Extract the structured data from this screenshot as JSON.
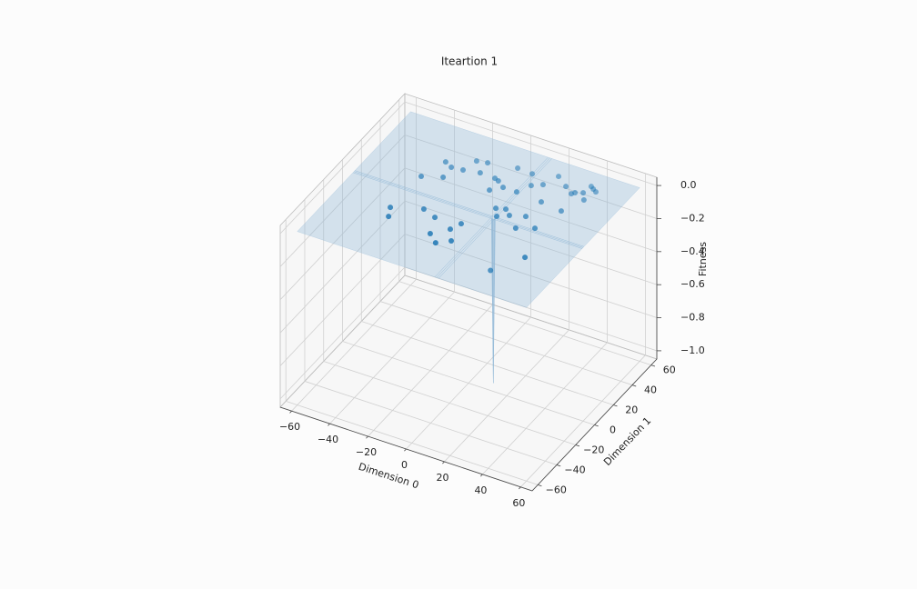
{
  "chart_data": {
    "type": "scatter3d",
    "title": "Iteartion 1",
    "xlabel": "Dimension 0",
    "ylabel": "Dimension 1",
    "zlabel": "Fitness",
    "xlim": [
      -66,
      66
    ],
    "ylim": [
      -66,
      66
    ],
    "zlim": [
      -1.05,
      0.05
    ],
    "xticks": [
      {
        "value": -60,
        "label": "−60"
      },
      {
        "value": -40,
        "label": "−40"
      },
      {
        "value": -20,
        "label": "−20"
      },
      0,
      20,
      40,
      60
    ],
    "yticks": [
      {
        "value": -60,
        "label": "−60"
      },
      {
        "value": -40,
        "label": "−40"
      },
      {
        "value": -20,
        "label": "−20"
      },
      0,
      20,
      40,
      60
    ],
    "zticks": [
      {
        "value": 0,
        "label": "0.0"
      },
      {
        "value": -0.2,
        "label": "−0.2"
      },
      {
        "value": -0.4,
        "label": "−0.4"
      },
      {
        "value": -0.6,
        "label": "−0.6"
      },
      {
        "value": -0.8,
        "label": "−0.8"
      },
      {
        "value": -1,
        "label": "−1.0"
      }
    ],
    "grid": true,
    "color": "#1f77b4",
    "x": [
      -32.0,
      -29.3,
      -18.0,
      -10.5,
      -6.2,
      -0.6,
      0.1,
      4.9,
      2.4,
      -31.4,
      -27.1,
      -22.3,
      -22.8,
      -17.1,
      -15.1,
      -10.0,
      -9.2,
      -1.3,
      1.0,
      1.1,
      5.4,
      4.0,
      11.9,
      15.9,
      12.5,
      20.3,
      23.4,
      30.1,
      35.0,
      36.1,
      39.4,
      42.4,
      40.2,
      42.0,
      44.1,
      26.1,
      37.5,
      10.4,
      14.7,
      18.5,
      13.8,
      25.4,
      25.8,
      33.5,
      40.5,
      13
    ],
    "y": [
      -18.1,
      -25.4,
      -10.9,
      -14.4,
      -28.0,
      -33.6,
      -19.5,
      -28.2,
      -12.6,
      13.4,
      30.6,
      18.2,
      27.9,
      28.8,
      39.1,
      40.5,
      31.0,
      30.6,
      20.2,
      29.4,
      25.7,
      44.0,
      43.4,
      34.2,
      25.7,
      37.9,
      48.1,
      42.3,
      38.1,
      39.8,
      41.8,
      36.5,
      48.7,
      47.2,
      45.7,
      24.3,
      22.4,
      7.9,
      9.8,
      5.9,
      2.0,
      9.3,
      -2.2,
      2.6,
      -22.1,
      -3
    ],
    "z": [
      0,
      0,
      0,
      0,
      0,
      0,
      0,
      0,
      0,
      0,
      0,
      0,
      0,
      0,
      0,
      0,
      0,
      0,
      0,
      0,
      0,
      0,
      0,
      0,
      0,
      0,
      0,
      0,
      0,
      0,
      0,
      0,
      0,
      0,
      0,
      0,
      0,
      0,
      0,
      0,
      0,
      0,
      0,
      0,
      0,
      -0.3
    ],
    "surface": {
      "x": [
        -60,
        12,
        13,
        14,
        60
      ],
      "y": [
        -60,
        -1,
        0,
        1,
        60
      ],
      "z": [
        [
          0,
          0,
          0,
          0,
          0
        ],
        [
          0,
          0,
          0,
          0,
          0
        ],
        [
          0,
          0,
          -1,
          0,
          0
        ],
        [
          0,
          0,
          0,
          0,
          0
        ],
        [
          0,
          0,
          0,
          0,
          0
        ]
      ],
      "color": "#8fb8d8"
    }
  }
}
